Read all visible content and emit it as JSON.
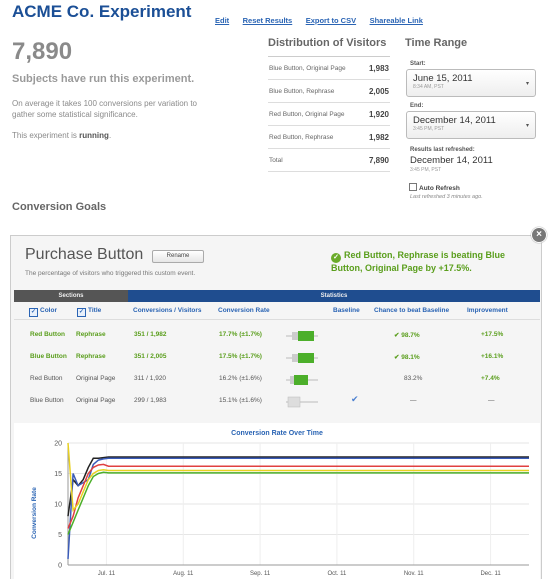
{
  "header": {
    "title": "ACME Co. Experiment",
    "links": [
      "Edit",
      "Reset Results",
      "Export to CSV",
      "Shareable Link"
    ]
  },
  "summary": {
    "total": "7,890",
    "subjects_text": "Subjects have run this experiment.",
    "avg_text": "On average it takes 100 conversions per variation to gather some statistical significance.",
    "running_prefix": "This experiment is",
    "running_state": "running",
    "running_suffix": "."
  },
  "distribution": {
    "title": "Distribution of Visitors",
    "rows": [
      {
        "label": "Blue Button, Original Page",
        "value": "1,983"
      },
      {
        "label": "Blue Button, Rephrase",
        "value": "2,005"
      },
      {
        "label": "Red Button, Original Page",
        "value": "1,920"
      },
      {
        "label": "Red Button, Rephrase",
        "value": "1,982"
      },
      {
        "label": "Total",
        "value": "7,890"
      }
    ]
  },
  "time_range": {
    "title": "Time Range",
    "start_label": "Start:",
    "start_date": "June 15, 2011",
    "start_time": "8:34 AM, PST",
    "end_label": "End:",
    "end_date": "December 14, 2011",
    "end_time": "3:45 PM, PST",
    "refreshed_label": "Results last refreshed:",
    "refreshed_date": "December 14, 2011",
    "refreshed_time": "3:45 PM, PST",
    "auto_refresh_label": "Auto Refresh",
    "last_refreshed": "Last refreshed 3 minutes ago."
  },
  "goals": {
    "title": "Conversion Goals",
    "name": "Purchase Button",
    "rename_label": "Rename",
    "description": "The percentage of visitors who triggered this custom event.",
    "beating_text": "Red Button, Rephrase is beating Blue Button, Original Page by +17.5%.",
    "sections_label": "Sections",
    "stats_label": "Statistics",
    "columns": {
      "color": "Color",
      "title": "Title",
      "conv": "Conversions / Visitors",
      "rate": "Conversion Rate",
      "baseline": "Baseline",
      "chance": "Chance to beat Baseline",
      "improvement": "Improvement"
    },
    "rows": [
      {
        "color": "Red Button",
        "title": "Rephrase",
        "conv": "351 / 1,982",
        "rate": "17.7% (±1.7%)",
        "chance": "98.7%",
        "improvement": "+17.5%",
        "winner": true,
        "rate_value": 17.7
      },
      {
        "color": "Blue Button",
        "title": "Rephrase",
        "conv": "351 / 2,005",
        "rate": "17.5% (±1.7%)",
        "chance": "98.1%",
        "improvement": "+16.1%",
        "winner": true,
        "rate_value": 17.5
      },
      {
        "color": "Red Button",
        "title": "Original Page",
        "conv": "311 / 1,920",
        "rate": "16.2% (±1.6%)",
        "chance": "83.2%",
        "improvement": "+7.4%",
        "winner": false,
        "rate_value": 16.2
      },
      {
        "color": "Blue Button",
        "title": "Original Page",
        "conv": "299 / 1,983",
        "rate": "15.1% (±1.6%)",
        "chance": "—",
        "improvement": "—",
        "winner": false,
        "baseline": true,
        "rate_value": 15.1
      }
    ]
  },
  "chart_data": {
    "type": "line",
    "title": "Conversion Rate Over Time",
    "ylabel": "Conversion Rate",
    "xlabel": "",
    "ylim": [
      0,
      20
    ],
    "yticks": [
      "0",
      "5",
      "10",
      "15",
      "20"
    ],
    "xticks": [
      "Jul. 11",
      "Aug. 11",
      "Sep. 11",
      "Oct. 11",
      "Nov. 11",
      "Dec. 11"
    ],
    "x_days": [
      0,
      2,
      4,
      6,
      8,
      10,
      12,
      14,
      16,
      20,
      30,
      60,
      90,
      120,
      150,
      182
    ],
    "series": [
      {
        "color": "#222222",
        "values": [
          8,
          14,
          13,
          14,
          16,
          17.5,
          17.5,
          17.6,
          17.7,
          17.7,
          17.7,
          17.7,
          17.7,
          17.7,
          17.7,
          17.7
        ]
      },
      {
        "color": "#3a5bb8",
        "values": [
          1,
          15,
          13,
          13.5,
          14,
          16.5,
          17.2,
          17.4,
          17.5,
          17.5,
          17.5,
          17.5,
          17.5,
          17.5,
          17.5,
          17.5
        ]
      },
      {
        "color": "#e04040",
        "values": [
          6,
          8,
          11,
          13,
          15,
          16,
          16.4,
          16.5,
          16.2,
          16.2,
          16.2,
          16.2,
          16.2,
          16.2,
          16.2,
          16.2
        ]
      },
      {
        "color": "#4caf2a",
        "values": [
          5,
          7,
          9,
          11,
          13,
          14.5,
          15,
          15.2,
          15.1,
          15.1,
          15.1,
          15.1,
          15.1,
          15.1,
          15.1,
          15.1
        ]
      },
      {
        "color": "#e8d020",
        "values": [
          20,
          9,
          10,
          12,
          14,
          15,
          15.5,
          15.6,
          15.5,
          15.5,
          15.5,
          15.5,
          15.5,
          15.5,
          15.5,
          15.5
        ]
      }
    ]
  }
}
